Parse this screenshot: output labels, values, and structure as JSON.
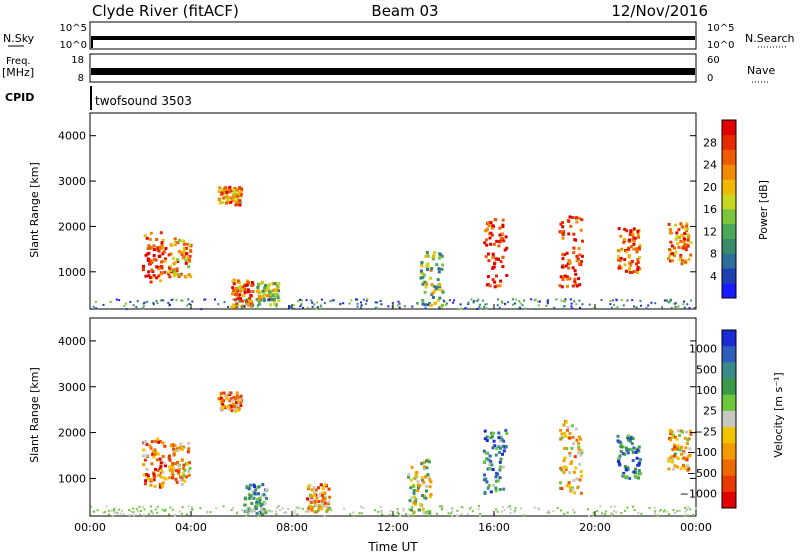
{
  "header": {
    "station": "Clyde River (fitACF)",
    "beam": "Beam 03",
    "date": "12/Nov/2016"
  },
  "strips": {
    "nsky_label": "N.Sky",
    "nsky_ticks": [
      "10^5",
      "10^0"
    ],
    "nsearch_label": "N.Search",
    "nsearch_ticks": [
      "10^5",
      "10^0"
    ],
    "freq_label": "Freq.",
    "freq_unit": "[MHz]",
    "freq_ticks": [
      "18",
      "8"
    ],
    "nave_label": "Nave",
    "nave_ticks": [
      "60",
      "0"
    ],
    "cpid_label": "CPID",
    "cpid_value": "twofsound 3503"
  },
  "chart_data": [
    {
      "type": "heatmap",
      "title": "",
      "xlabel": "",
      "ylabel": "Slant Range [km]",
      "x_ticks": [
        "00:00",
        "04:00",
        "08:00",
        "12:00",
        "16:00",
        "20:00",
        "00:00"
      ],
      "xlim_hours": [
        0,
        24
      ],
      "y_ticks": [
        1000,
        2000,
        3000,
        4000
      ],
      "ylim": [
        180,
        4500
      ],
      "colorbar": {
        "label": "Power [dB]",
        "ticks": [
          "4",
          "8",
          "12",
          "16",
          "20",
          "24",
          "28"
        ],
        "range": [
          0,
          30
        ],
        "colors": [
          "#1a1aff",
          "#1d3fb0",
          "#2d6e9a",
          "#3a8a6a",
          "#4aa85a",
          "#7cc43a",
          "#c8d820",
          "#f2b800",
          "#f28a00",
          "#ee5a00",
          "#e82a00",
          "#e00000"
        ]
      },
      "features": [
        {
          "t": 2.5,
          "r_min": 800,
          "r_max": 1900,
          "level": 0.85
        },
        {
          "t": 3.5,
          "r_min": 900,
          "r_max": 1800,
          "level": 0.7
        },
        {
          "t": 5.5,
          "r_min": 2500,
          "r_max": 2900,
          "level": 0.7
        },
        {
          "t": 6.0,
          "r_min": 250,
          "r_max": 900,
          "level": 0.8
        },
        {
          "t": 7.0,
          "r_min": 300,
          "r_max": 800,
          "level": 0.5
        },
        {
          "t": 13.5,
          "r_min": 250,
          "r_max": 1500,
          "level": 0.45
        },
        {
          "t": 16.0,
          "r_min": 700,
          "r_max": 2200,
          "level": 0.9
        },
        {
          "t": 19.0,
          "r_min": 700,
          "r_max": 2300,
          "level": 0.92
        },
        {
          "t": 21.3,
          "r_min": 1000,
          "r_max": 2000,
          "level": 0.8
        },
        {
          "t": 23.3,
          "r_min": 1200,
          "r_max": 2100,
          "level": 0.75
        }
      ]
    },
    {
      "type": "heatmap",
      "title": "",
      "xlabel": "Time UT",
      "ylabel": "Slant Range [km]",
      "x_ticks": [
        "00:00",
        "04:00",
        "08:00",
        "12:00",
        "16:00",
        "20:00",
        "00:00"
      ],
      "xlim_hours": [
        0,
        24
      ],
      "y_ticks": [
        1000,
        2000,
        3000,
        4000
      ],
      "ylim": [
        180,
        4500
      ],
      "colorbar": {
        "label": "Velocity [m s⁻¹]",
        "ticks": [
          "1000",
          "500",
          "100",
          "25",
          "−25",
          "−100",
          "−500",
          "−1000"
        ],
        "colors": [
          "#1a2bd4",
          "#2d5db8",
          "#3a8a8a",
          "#3a9a4a",
          "#6cc83a",
          "#c8c8c0",
          "#f2c400",
          "#f29a00",
          "#ee6a00",
          "#e83a00",
          "#e00000"
        ]
      },
      "features": [
        {
          "t": 2.5,
          "r_min": 800,
          "r_max": 1900,
          "level": -0.5
        },
        {
          "t": 3.5,
          "r_min": 900,
          "r_max": 1800,
          "level": -0.3
        },
        {
          "t": 5.5,
          "r_min": 2500,
          "r_max": 2900,
          "level": -0.4
        },
        {
          "t": 6.5,
          "r_min": 250,
          "r_max": 900,
          "level": 0.4
        },
        {
          "t": 9.0,
          "r_min": 300,
          "r_max": 900,
          "level": -0.4
        },
        {
          "t": 13.0,
          "r_min": 250,
          "r_max": 1500,
          "level": 0.05
        },
        {
          "t": 16.0,
          "r_min": 700,
          "r_max": 2100,
          "level": 0.5
        },
        {
          "t": 19.0,
          "r_min": 700,
          "r_max": 2300,
          "level": -0.2
        },
        {
          "t": 21.3,
          "r_min": 1000,
          "r_max": 2000,
          "level": 0.6
        },
        {
          "t": 23.3,
          "r_min": 1200,
          "r_max": 2100,
          "level": -0.2
        }
      ]
    }
  ]
}
